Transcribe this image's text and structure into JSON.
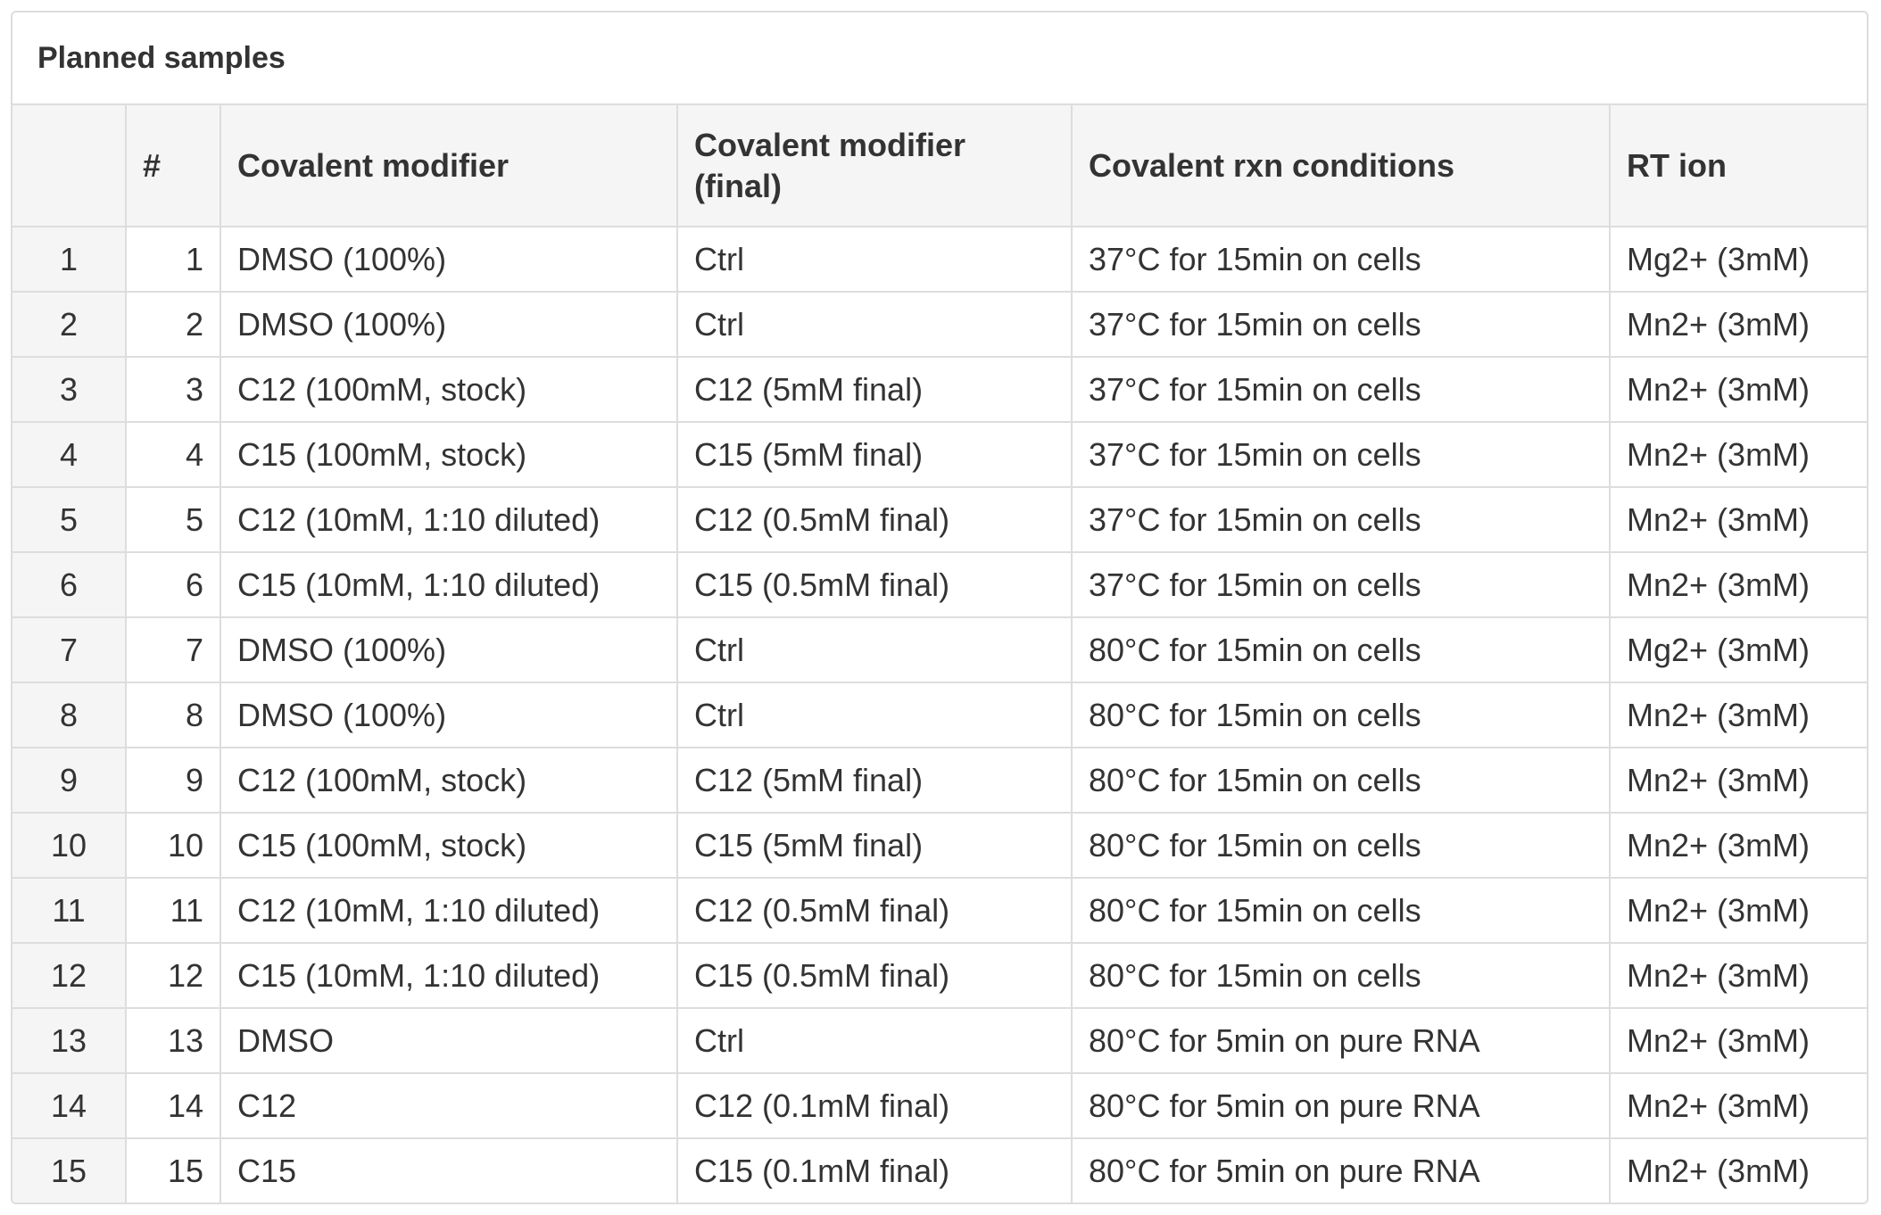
{
  "panel": {
    "title": "Planned samples"
  },
  "table": {
    "headers": [
      "",
      "#",
      "Covalent modifier",
      "Covalent modifier (final)",
      "Covalent rxn conditions",
      "RT ion"
    ],
    "rows": [
      [
        "1",
        "1",
        "DMSO (100%)",
        "Ctrl",
        "37°C for 15min on cells",
        "Mg2+ (3mM)"
      ],
      [
        "2",
        "2",
        "DMSO (100%)",
        "Ctrl",
        "37°C for 15min on cells",
        "Mn2+ (3mM)"
      ],
      [
        "3",
        "3",
        "C12 (100mM, stock)",
        "C12 (5mM final)",
        "37°C for 15min on cells",
        "Mn2+ (3mM)"
      ],
      [
        "4",
        "4",
        "C15 (100mM, stock)",
        "C15 (5mM final)",
        "37°C for 15min on cells",
        "Mn2+ (3mM)"
      ],
      [
        "5",
        "5",
        "C12 (10mM, 1:10 diluted)",
        "C12 (0.5mM final)",
        "37°C for 15min on cells",
        "Mn2+ (3mM)"
      ],
      [
        "6",
        "6",
        "C15 (10mM, 1:10 diluted)",
        "C15 (0.5mM final)",
        "37°C for 15min on cells",
        "Mn2+ (3mM)"
      ],
      [
        "7",
        "7",
        "DMSO (100%)",
        "Ctrl",
        "80°C for 15min on cells",
        "Mg2+ (3mM)"
      ],
      [
        "8",
        "8",
        "DMSO (100%)",
        "Ctrl",
        "80°C for 15min on cells",
        "Mn2+ (3mM)"
      ],
      [
        "9",
        "9",
        "C12 (100mM, stock)",
        "C12 (5mM final)",
        "80°C for 15min on cells",
        "Mn2+ (3mM)"
      ],
      [
        "10",
        "10",
        "C15 (100mM, stock)",
        "C15 (5mM final)",
        "80°C for 15min on cells",
        "Mn2+ (3mM)"
      ],
      [
        "11",
        "11",
        "C12 (10mM, 1:10 diluted)",
        "C12 (0.5mM final)",
        "80°C for 15min on cells",
        "Mn2+ (3mM)"
      ],
      [
        "12",
        "12",
        "C15 (10mM, 1:10 diluted)",
        "C15 (0.5mM final)",
        "80°C for 15min on cells",
        "Mn2+ (3mM)"
      ],
      [
        "13",
        "13",
        "DMSO",
        "Ctrl",
        "80°C for 5min on pure RNA",
        "Mn2+ (3mM)"
      ],
      [
        "14",
        "14",
        "C12",
        "C12 (0.1mM final)",
        "80°C for 5min on pure RNA",
        "Mn2+ (3mM)"
      ],
      [
        "15",
        "15",
        "C15",
        "C15 (0.1mM final)",
        "80°C for 5min on pure RNA",
        "Mn2+ (3mM)"
      ]
    ]
  },
  "colors": {
    "border": "#dddddd",
    "header_background": "#f5f5f5",
    "text": "#333333"
  }
}
